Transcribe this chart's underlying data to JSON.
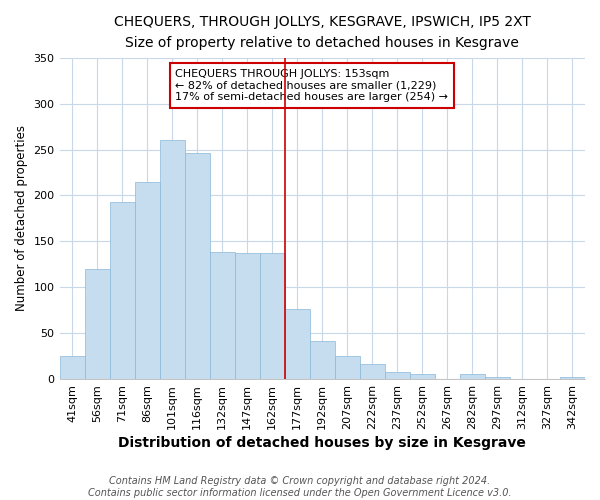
{
  "title": "CHEQUERS, THROUGH JOLLYS, KESGRAVE, IPSWICH, IP5 2XT",
  "subtitle": "Size of property relative to detached houses in Kesgrave",
  "xlabel": "Distribution of detached houses by size in Kesgrave",
  "ylabel": "Number of detached properties",
  "bar_labels": [
    "41sqm",
    "56sqm",
    "71sqm",
    "86sqm",
    "101sqm",
    "116sqm",
    "132sqm",
    "147sqm",
    "162sqm",
    "177sqm",
    "192sqm",
    "207sqm",
    "222sqm",
    "237sqm",
    "252sqm",
    "267sqm",
    "282sqm",
    "297sqm",
    "312sqm",
    "327sqm",
    "342sqm"
  ],
  "bar_values": [
    25,
    120,
    193,
    215,
    260,
    246,
    138,
    137,
    137,
    76,
    41,
    25,
    16,
    8,
    5,
    0,
    5,
    2,
    0,
    0,
    2
  ],
  "bar_color": "#c6ddf0",
  "bar_edge_color": "#8ab8d8",
  "vline_x": 8.5,
  "vline_color": "#cc0000",
  "annotation_title": "CHEQUERS THROUGH JOLLYS: 153sqm",
  "annotation_line1": "← 82% of detached houses are smaller (1,229)",
  "annotation_line2": "17% of semi-detached houses are larger (254) →",
  "annotation_box_color": "#ffffff",
  "annotation_box_edge": "#cc0000",
  "ylim": [
    0,
    350
  ],
  "yticks": [
    0,
    50,
    100,
    150,
    200,
    250,
    300,
    350
  ],
  "footer1": "Contains HM Land Registry data © Crown copyright and database right 2024.",
  "footer2": "Contains public sector information licensed under the Open Government Licence v3.0.",
  "title_fontsize": 10,
  "subtitle_fontsize": 9.5,
  "xlabel_fontsize": 10,
  "ylabel_fontsize": 8.5,
  "tick_fontsize": 8,
  "footer_fontsize": 7,
  "annotation_fontsize": 8
}
